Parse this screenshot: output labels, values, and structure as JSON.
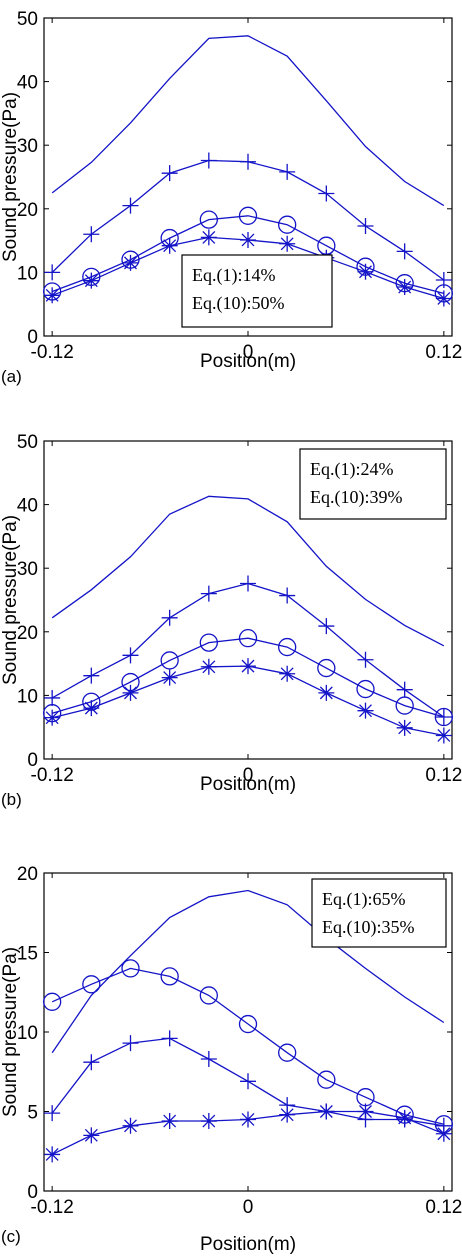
{
  "chart_data": [
    {
      "type": "line",
      "panel_label": "(a)",
      "xlabel": "Position(m)",
      "ylabel": "Sound pressure(Pa)",
      "xlim": [
        -0.125,
        0.125
      ],
      "ylim": [
        0,
        50
      ],
      "xticks": [
        -0.12,
        0,
        0.12
      ],
      "xtick_labels": [
        "-0.12",
        "0",
        "0.12"
      ],
      "yticks": [
        0,
        10,
        20,
        30,
        40,
        50
      ],
      "annotation": [
        "Eq.(1):14%",
        "Eq.(10):50%"
      ],
      "annotation_box": "bottom-center",
      "x": [
        -0.12,
        -0.096,
        -0.072,
        -0.048,
        -0.024,
        0,
        0.024,
        0.048,
        0.072,
        0.096,
        0.12
      ],
      "series": [
        {
          "marker": "none",
          "values": [
            22.5,
            27.3,
            33.5,
            40.5,
            46.8,
            47.2,
            44.0,
            37.0,
            29.8,
            24.3,
            20.5
          ]
        },
        {
          "marker": "plus",
          "values": [
            10.0,
            16.0,
            20.5,
            25.6,
            27.6,
            27.4,
            25.8,
            22.4,
            17.3,
            13.3,
            8.8
          ]
        },
        {
          "marker": "circle",
          "values": [
            7.0,
            9.3,
            12.0,
            15.4,
            18.3,
            18.9,
            17.5,
            14.2,
            10.9,
            8.3,
            6.7
          ]
        },
        {
          "marker": "asterisk",
          "values": [
            6.4,
            8.7,
            11.5,
            14.2,
            15.5,
            15.1,
            14.5,
            12.3,
            10.1,
            7.7,
            5.9
          ]
        }
      ]
    },
    {
      "type": "line",
      "panel_label": "(b)",
      "xlabel": "Position(m)",
      "ylabel": "Sound pressure(Pa)",
      "xlim": [
        -0.125,
        0.125
      ],
      "ylim": [
        0,
        50
      ],
      "xticks": [
        -0.12,
        0,
        0.12
      ],
      "xtick_labels": [
        "-0.12",
        "0",
        "0.12"
      ],
      "yticks": [
        0,
        10,
        20,
        30,
        40,
        50
      ],
      "annotation": [
        "Eq.(1):24%",
        "Eq.(10):39%"
      ],
      "annotation_box": "top-right",
      "x": [
        -0.12,
        -0.096,
        -0.072,
        -0.048,
        -0.024,
        0,
        0.024,
        0.048,
        0.072,
        0.096,
        0.12
      ],
      "series": [
        {
          "marker": "none",
          "values": [
            22.2,
            26.6,
            31.8,
            38.5,
            41.3,
            40.9,
            37.3,
            30.3,
            25.1,
            21.0,
            17.8
          ]
        },
        {
          "marker": "plus",
          "values": [
            9.6,
            13.1,
            16.3,
            22.2,
            26.0,
            27.6,
            25.7,
            20.9,
            15.6,
            10.9,
            6.6
          ]
        },
        {
          "marker": "circle",
          "values": [
            7.2,
            9.0,
            12.1,
            15.5,
            18.3,
            19.0,
            17.6,
            14.3,
            11.0,
            8.4,
            6.6
          ]
        },
        {
          "marker": "asterisk",
          "values": [
            6.5,
            8.0,
            10.4,
            12.8,
            14.5,
            14.6,
            13.4,
            10.4,
            7.6,
            4.9,
            3.7
          ]
        }
      ]
    },
    {
      "type": "line",
      "panel_label": "(c)",
      "xlabel": "Position(m)",
      "ylabel": "Sound pressure(Pa)",
      "xlim": [
        -0.125,
        0.125
      ],
      "ylim": [
        0,
        20
      ],
      "xticks": [
        -0.12,
        0,
        0.12
      ],
      "xtick_labels": [
        "-0.12",
        "0",
        "0.12"
      ],
      "yticks": [
        0,
        5,
        10,
        15,
        20
      ],
      "annotation": [
        "Eq.(1):65%",
        "Eq.(10):35%"
      ],
      "annotation_box": "top-right",
      "x": [
        -0.12,
        -0.096,
        -0.072,
        -0.048,
        -0.024,
        0,
        0.024,
        0.048,
        0.072,
        0.096,
        0.12
      ],
      "series": [
        {
          "marker": "none",
          "values": [
            8.7,
            12.3,
            14.8,
            17.2,
            18.5,
            18.9,
            18.0,
            15.9,
            14.0,
            12.2,
            10.6
          ]
        },
        {
          "marker": "circle",
          "values": [
            11.9,
            13.0,
            14.0,
            13.5,
            12.3,
            10.5,
            8.7,
            7.0,
            5.9,
            4.8,
            4.2
          ]
        },
        {
          "marker": "plus",
          "values": [
            4.9,
            8.1,
            9.3,
            9.6,
            8.3,
            6.9,
            5.4,
            5.0,
            4.5,
            4.5,
            4.1
          ]
        },
        {
          "marker": "asterisk",
          "values": [
            2.3,
            3.5,
            4.1,
            4.4,
            4.4,
            4.5,
            4.8,
            5.0,
            5.0,
            4.6,
            3.6
          ]
        }
      ]
    }
  ]
}
